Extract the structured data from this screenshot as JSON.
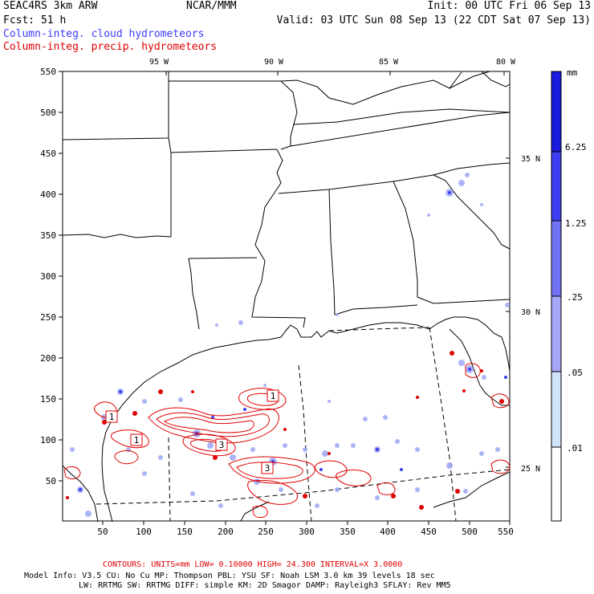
{
  "header": {
    "model": "SEAC4RS  3km ARW",
    "org": "NCAR/MMM",
    "init": "Init: 00 UTC Fri 06 Sep 13",
    "fcst": "Fcst:   51 h",
    "valid": "Valid: 03 UTC Sun 08 Sep 13 (22 CDT Sat 07 Sep 13)",
    "legend_cloud": "Column-integ. cloud hydrometeors",
    "legend_precip": "Column-integ. precip. hydrometeors",
    "legend_cloud_color": "#3b3bff",
    "legend_precip_color": "#e00000"
  },
  "map": {
    "lon_labels": [
      "95 W",
      "90 W",
      "85 W",
      "80 W"
    ],
    "lat_labels": [
      "35 N",
      "30 N",
      "25 N"
    ],
    "y_ticks": [
      "550",
      "500",
      "450",
      "400",
      "350",
      "300",
      "250",
      "200",
      "150",
      "100",
      "50"
    ],
    "x_ticks": [
      "50",
      "100",
      "150",
      "200",
      "250",
      "300",
      "350",
      "400",
      "450",
      "500",
      "550"
    ],
    "contour_labels": [
      "1",
      "1",
      "1",
      "3",
      "3"
    ]
  },
  "colorbar": {
    "unit": "mm",
    "labels": [
      "6.25",
      "1.25",
      ".25",
      ".05",
      ".01"
    ],
    "colors": [
      "#1a1adc",
      "#3e3ef0",
      "#7272f5",
      "#a6a6f7",
      "#d2e4fa",
      "#e8f6fc",
      "#ffffff"
    ]
  },
  "footer": {
    "contours_line": "CONTOURS:  UNITS=mm  LOW= 0.10000      HIGH=  24.300      INTERVAL=X  3.0000",
    "model_info_line1": "Model Info: V3.5      CU: No Cu      MP: Thompson     PBL: YSU      SF: Noah LSM     3.0 km   39 levels   18 sec",
    "model_info_line2": "LW: RRTMG     SW: RRTMG   DIFF: simple KM: 2D Smagor DAMP: Rayleigh3  SFLAY: Rev MM5",
    "contours_color": "#e00000"
  }
}
